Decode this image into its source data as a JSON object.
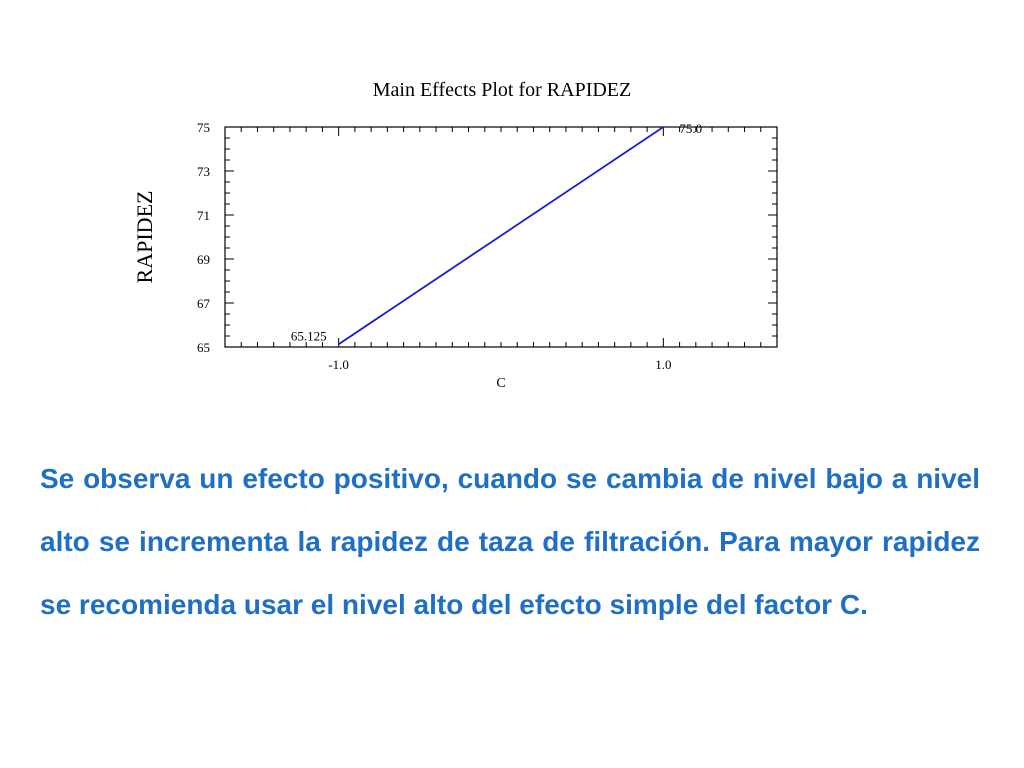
{
  "chart_data": {
    "type": "line",
    "title": "Main Effects Plot for RAPIDEZ",
    "xlabel": "C",
    "ylabel": "RAPIDEZ",
    "x": [
      -1.0,
      1.0
    ],
    "x_tick_labels": [
      "-1.0",
      "1.0"
    ],
    "xlim": [
      -1.7,
      1.7
    ],
    "ylim": [
      65,
      75
    ],
    "y_ticks": [
      65,
      67,
      69,
      71,
      73,
      75
    ],
    "y_tick_labels": [
      "65",
      "67",
      "69",
      "71",
      "73",
      "75"
    ],
    "series": [
      {
        "values": [
          65.125,
          75.0
        ],
        "color": "#1a1adb",
        "point_labels": [
          "65.125",
          "75.0"
        ]
      }
    ],
    "grid": false
  },
  "caption": {
    "text": "Se observa un efecto positivo, cuando se cambia de nivel bajo a nivel alto se incrementa la rapidez de taza de filtración. Para mayor rapidez se recomienda usar el nivel alto del efecto simple del factor C.",
    "color": "#1f6fc4"
  }
}
